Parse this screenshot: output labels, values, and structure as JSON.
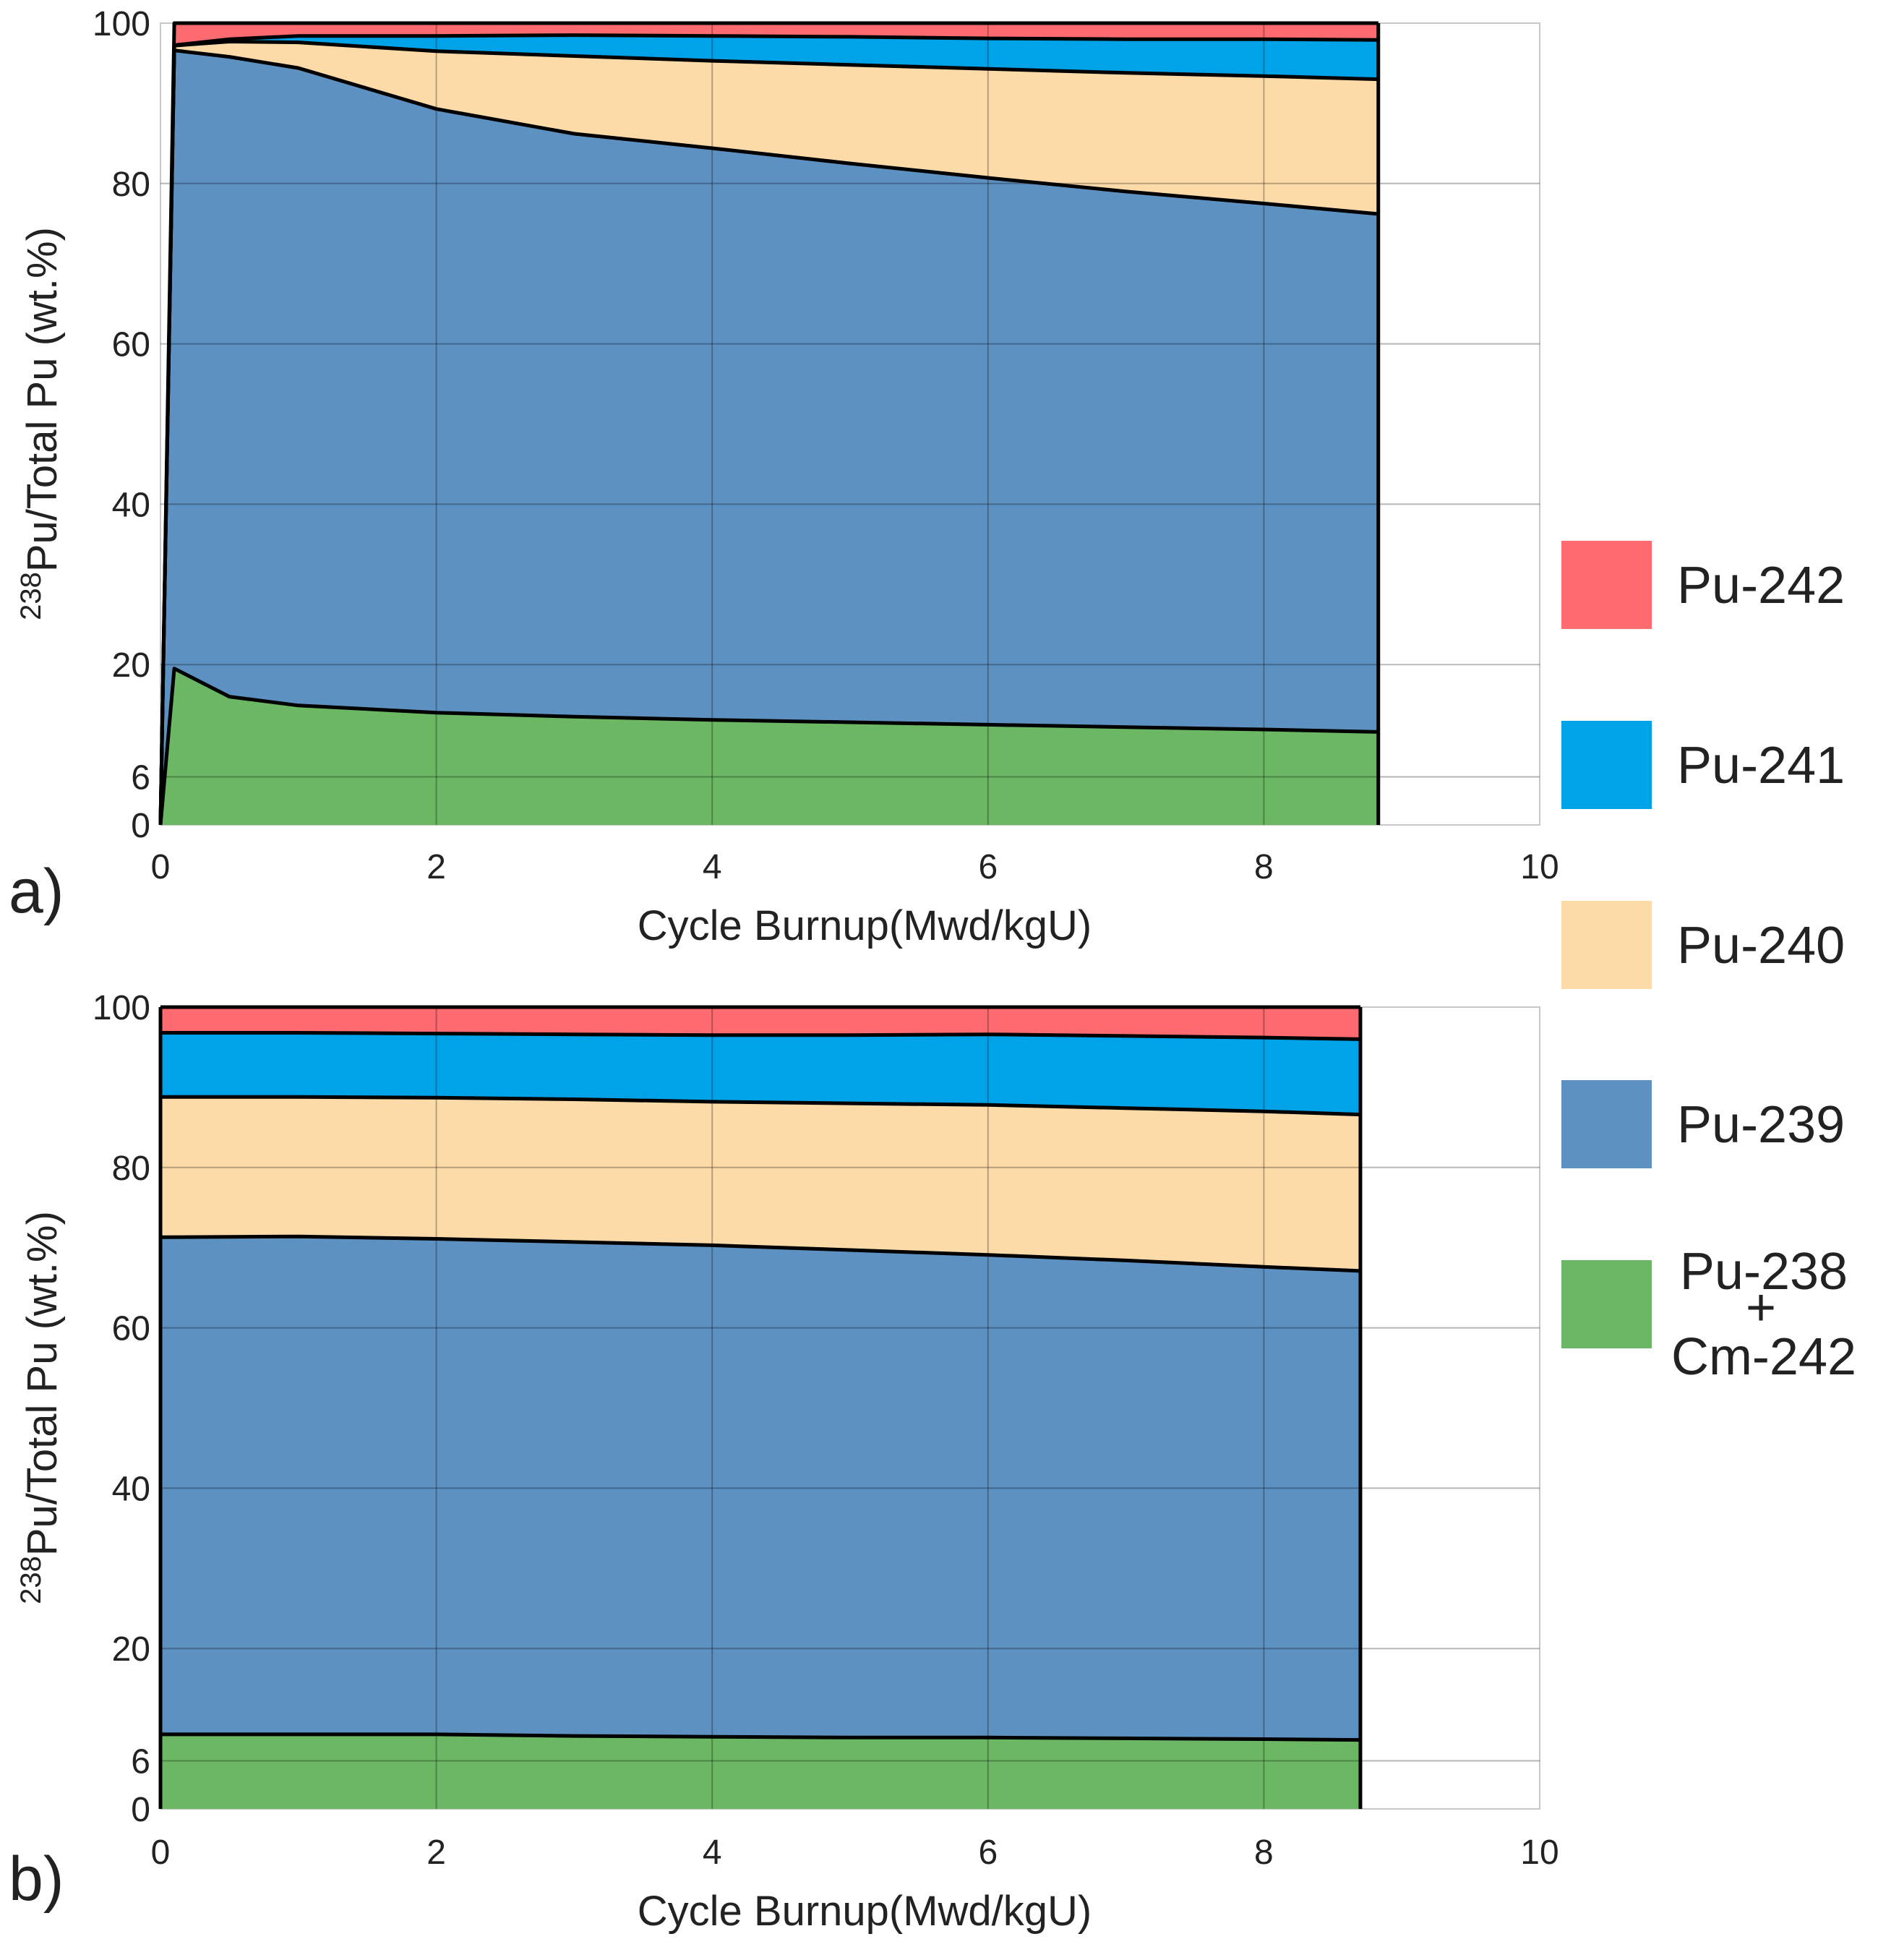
{
  "figure": {
    "legend": [
      {
        "label": "Pu-242",
        "color": "#fd6b70"
      },
      {
        "label": "Pu-241",
        "color": "#00a2e8"
      },
      {
        "label": "Pu-240",
        "color": "#fddba8"
      },
      {
        "label": "Pu-239",
        "color": "#5d91c2"
      },
      {
        "label_line1": "Pu-238",
        "label_plus": "+",
        "label_line2": "Cm-242",
        "color": "#6bb763"
      }
    ]
  },
  "chart_data": [
    {
      "type": "area",
      "stacked": true,
      "panel_label": "a)",
      "xlabel": "Cycle Burnup(Mwd/kgU)",
      "ylabel_sup": "238",
      "ylabel_main": "Pu/Total Pu (wt.%)",
      "xlim": [
        0,
        10
      ],
      "ylim": [
        0,
        100
      ],
      "xticks": [
        "0",
        "2",
        "4",
        "6",
        "8",
        "10"
      ],
      "yticks": [
        "0",
        "6",
        "20",
        "40",
        "60",
        "80",
        "100"
      ],
      "ytick_values": [
        0,
        6,
        20,
        40,
        60,
        80,
        100
      ],
      "x": [
        0,
        0.1,
        0.5,
        1,
        2,
        3,
        4,
        5,
        6,
        7,
        8,
        8.83
      ],
      "series": [
        {
          "name": "Pu-238 + Cm-242",
          "color": "#6bb763",
          "values": [
            0,
            19.5,
            16,
            14.9,
            14.0,
            13.5,
            13.1,
            12.8,
            12.5,
            12.2,
            11.9,
            11.6
          ]
        },
        {
          "name": "Pu-239",
          "color": "#5d91c2",
          "values": [
            0,
            77.1,
            79.8,
            79.5,
            75.3,
            72.7,
            71.3,
            69.7,
            68.2,
            66.8,
            65.6,
            64.6
          ]
        },
        {
          "name": "Pu-240",
          "color": "#fddba8",
          "values": [
            0,
            0.6,
            1.9,
            3.2,
            7.2,
            9.7,
            10.9,
            12.3,
            13.6,
            14.8,
            15.9,
            16.8
          ]
        },
        {
          "name": "Pu-241",
          "color": "#00a2e8",
          "values": [
            0,
            0.05,
            0.3,
            0.8,
            1.9,
            2.6,
            3.1,
            3.5,
            3.8,
            4.2,
            4.6,
            4.9
          ]
        },
        {
          "name": "Pu-242",
          "color": "#fd6b70",
          "values": [
            0,
            2.75,
            2.0,
            1.6,
            1.6,
            1.5,
            1.6,
            1.7,
            1.9,
            2.0,
            2.0,
            2.1
          ]
        }
      ]
    },
    {
      "type": "area",
      "stacked": true,
      "panel_label": "b)",
      "xlabel": "Cycle Burnup(Mwd/kgU)",
      "ylabel_sup": "238",
      "ylabel_main": "Pu/Total Pu (wt.%)",
      "xlim": [
        0,
        10
      ],
      "ylim": [
        0,
        100
      ],
      "xticks": [
        "0",
        "2",
        "4",
        "6",
        "8",
        "10"
      ],
      "yticks": [
        "0",
        "6",
        "20",
        "40",
        "60",
        "80",
        "100"
      ],
      "ytick_values": [
        0,
        6,
        20,
        40,
        60,
        80,
        100
      ],
      "x": [
        0,
        1,
        2,
        3,
        4,
        5,
        6,
        7,
        8,
        8.7
      ],
      "series": [
        {
          "name": "Pu-238 + Cm-242",
          "color": "#6bb763",
          "values": [
            9.3,
            9.3,
            9.3,
            9.1,
            9.0,
            8.9,
            8.9,
            8.8,
            8.7,
            8.6
          ]
        },
        {
          "name": "Pu-239",
          "color": "#5d91c2",
          "values": [
            62.0,
            62.1,
            61.8,
            61.6,
            61.3,
            60.8,
            60.2,
            59.6,
            58.9,
            58.5
          ]
        },
        {
          "name": "Pu-240",
          "color": "#fddba8",
          "values": [
            17.5,
            17.4,
            17.6,
            17.8,
            17.9,
            18.3,
            18.7,
            19.0,
            19.4,
            19.5
          ]
        },
        {
          "name": "Pu-241",
          "color": "#00a2e8",
          "values": [
            8.0,
            8.0,
            8.0,
            8.1,
            8.3,
            8.5,
            8.8,
            9.0,
            9.2,
            9.4
          ]
        },
        {
          "name": "Pu-242",
          "color": "#fd6b70",
          "values": [
            3.2,
            3.2,
            3.3,
            3.4,
            3.5,
            3.5,
            3.4,
            3.6,
            3.8,
            4.0
          ]
        }
      ]
    }
  ]
}
